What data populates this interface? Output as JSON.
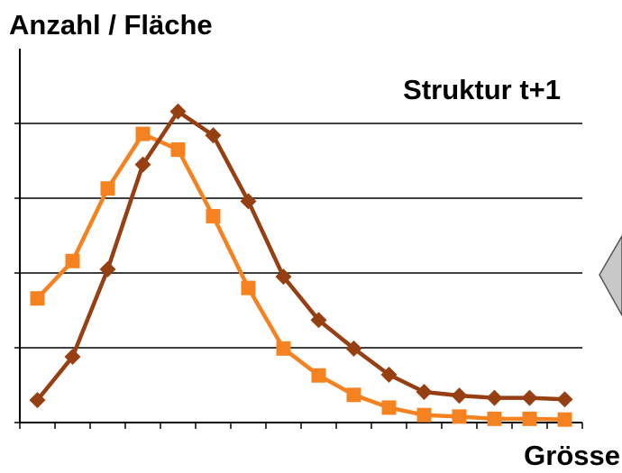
{
  "chart_data": {
    "type": "line",
    "title": "Anzahl / Fläche",
    "annotation": "Struktur t+1",
    "x_label": "Grösse",
    "categories": [
      null,
      null,
      null,
      null,
      null,
      null,
      null,
      null,
      null,
      null,
      null,
      null,
      null,
      null,
      null,
      null
    ],
    "series": [
      {
        "color": "#f58220",
        "marker": "square",
        "values": [
          1.66,
          2.16,
          3.13,
          3.86,
          3.65,
          2.76,
          1.8,
          0.99,
          0.63,
          0.37,
          0.2,
          0.1,
          0.08,
          0.05,
          0.05,
          0.04
        ]
      },
      {
        "color": "#953f12",
        "marker": "diamond",
        "values": [
          0.3,
          0.88,
          2.05,
          3.45,
          4.16,
          3.84,
          2.96,
          1.95,
          1.37,
          0.99,
          0.64,
          0.41,
          0.36,
          0.33,
          0.33,
          0.31
        ]
      }
    ],
    "ylim": [
      0,
      5
    ],
    "yticks": [
      0,
      1,
      2,
      3,
      4
    ],
    "grid": true
  }
}
